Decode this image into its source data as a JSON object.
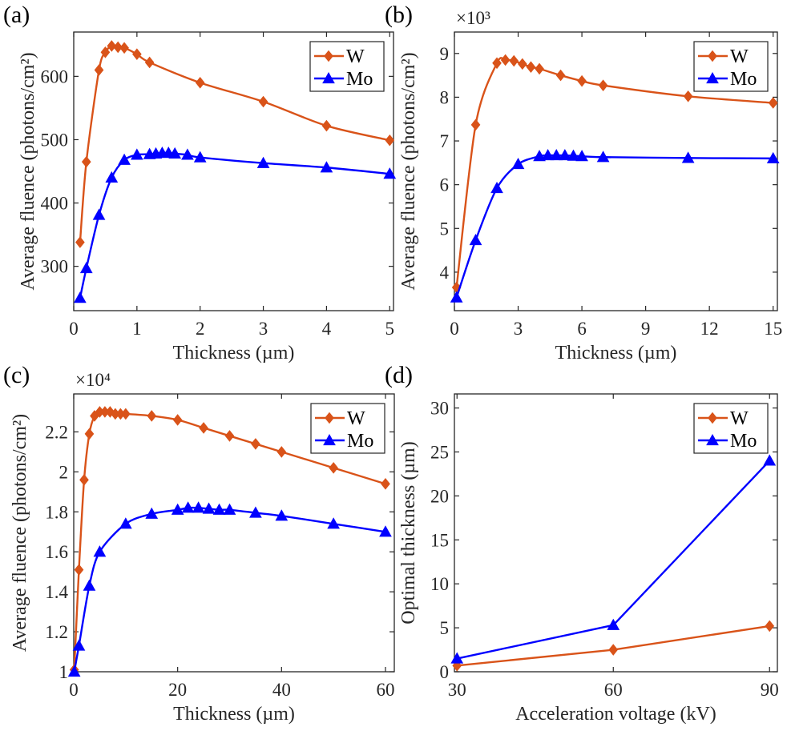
{
  "chart_data": [
    {
      "type": "line",
      "panel_label": "(a)",
      "exponent": "",
      "xlabel": "Thickness (µm)",
      "ylabel": "Average fluence (photons/cm²)",
      "xlim": [
        0,
        5.06
      ],
      "ylim": [
        230,
        670
      ],
      "xticks": [
        0,
        1,
        2,
        3,
        4,
        5
      ],
      "yticks": [
        300,
        400,
        500,
        600
      ],
      "xtick_labels": [
        "0",
        "1",
        "2",
        "3",
        "4",
        "5"
      ],
      "ytick_labels": [
        "300",
        "400",
        "500",
        "600"
      ],
      "legend": "top-right",
      "grid": false,
      "smooth": true,
      "series": [
        {
          "name": "W",
          "color": "#D95319",
          "marker": "diamond",
          "x": [
            0.1,
            0.2,
            0.4,
            0.5,
            0.6,
            0.7,
            0.8,
            1.0,
            1.2,
            2,
            3,
            4,
            5
          ],
          "y": [
            338,
            465,
            610,
            638,
            648,
            646,
            645,
            635,
            622,
            590,
            560,
            522,
            499
          ]
        },
        {
          "name": "Mo",
          "color": "#0000FF",
          "marker": "triangle",
          "x": [
            0.1,
            0.2,
            0.4,
            0.6,
            0.8,
            1.0,
            1.2,
            1.3,
            1.4,
            1.5,
            1.6,
            1.8,
            2,
            3,
            4,
            5
          ],
          "y": [
            250,
            297,
            381,
            440,
            468,
            476,
            477,
            478,
            479,
            479,
            478,
            476,
            472,
            463,
            456,
            446
          ]
        }
      ]
    },
    {
      "type": "line",
      "panel_label": "(b)",
      "exponent": "×10³",
      "xlabel": "Thickness (µm)",
      "ylabel": "Average fluence (photons/cm²)",
      "xlim": [
        0,
        15.2
      ],
      "ylim": [
        3.12,
        9.49
      ],
      "xticks": [
        0,
        3,
        6,
        9,
        12,
        15
      ],
      "yticks": [
        4,
        5,
        6,
        7,
        8,
        9
      ],
      "xtick_labels": [
        "0",
        "3",
        "6",
        "9",
        "12",
        "15"
      ],
      "ytick_labels": [
        "4",
        "5",
        "6",
        "7",
        "8",
        "9"
      ],
      "legend": "top-right",
      "grid": false,
      "smooth": true,
      "series": [
        {
          "name": "W",
          "color": "#D95319",
          "marker": "diamond",
          "x": [
            0.1,
            1,
            2,
            2.4,
            2.8,
            3.2,
            3.6,
            4,
            5,
            6,
            7,
            11,
            15
          ],
          "y": [
            3.65,
            7.37,
            8.78,
            8.85,
            8.83,
            8.76,
            8.69,
            8.65,
            8.5,
            8.37,
            8.27,
            8.02,
            7.87
          ]
        },
        {
          "name": "Mo",
          "color": "#0000FF",
          "marker": "triangle",
          "x": [
            0.1,
            1,
            2,
            3,
            4,
            4.4,
            4.8,
            5.2,
            5.6,
            6,
            7,
            11,
            15
          ],
          "y": [
            3.42,
            4.73,
            5.92,
            6.47,
            6.65,
            6.67,
            6.67,
            6.67,
            6.66,
            6.65,
            6.63,
            6.61,
            6.6
          ]
        }
      ]
    },
    {
      "type": "line",
      "panel_label": "(c)",
      "exponent": "×10⁴",
      "xlabel": "Thickness (µm)",
      "ylabel": "Average fluence (photons/cm²)",
      "xlim": [
        0,
        61.7
      ],
      "ylim": [
        1.0,
        2.39
      ],
      "xticks": [
        0,
        20,
        40,
        60
      ],
      "yticks": [
        1,
        1.2,
        1.4,
        1.6,
        1.8,
        2,
        2.2
      ],
      "xtick_labels": [
        "0",
        "20",
        "40",
        "60"
      ],
      "ytick_labels": [
        "1",
        "1.2",
        "1.4",
        "1.6",
        "1.8",
        "2",
        "2.2"
      ],
      "legend": "top-right",
      "grid": false,
      "smooth": true,
      "series": [
        {
          "name": "W",
          "color": "#D95319",
          "marker": "diamond",
          "x": [
            0.1,
            1,
            2,
            3,
            4,
            5,
            6,
            7,
            8,
            9,
            10,
            15,
            20,
            25,
            30,
            35,
            40,
            50,
            60
          ],
          "y": [
            1.01,
            1.51,
            1.96,
            2.19,
            2.28,
            2.3,
            2.3,
            2.3,
            2.29,
            2.29,
            2.29,
            2.28,
            2.26,
            2.22,
            2.18,
            2.14,
            2.1,
            2.02,
            1.94
          ]
        },
        {
          "name": "Mo",
          "color": "#0000FF",
          "marker": "triangle",
          "x": [
            0.1,
            1,
            3,
            5,
            10,
            15,
            20,
            22,
            24,
            26,
            28,
            30,
            35,
            40,
            50,
            60
          ],
          "y": [
            1.0,
            1.13,
            1.43,
            1.6,
            1.74,
            1.79,
            1.81,
            1.82,
            1.82,
            1.815,
            1.81,
            1.81,
            1.795,
            1.78,
            1.74,
            1.7
          ]
        }
      ]
    },
    {
      "type": "line",
      "panel_label": "(d)",
      "exponent": "",
      "xlabel": "Acceleration voltage (kV)",
      "ylabel": "Optimal thickness (µm)",
      "xlim": [
        29.5,
        91.5
      ],
      "ylim": [
        0,
        31.6
      ],
      "xticks": [
        30,
        60,
        90
      ],
      "yticks": [
        0,
        5,
        10,
        15,
        20,
        25,
        30
      ],
      "xtick_labels": [
        "30",
        "60",
        "90"
      ],
      "ytick_labels": [
        "0",
        "5",
        "10",
        "15",
        "20",
        "25",
        "30"
      ],
      "legend": "top-right",
      "grid": false,
      "smooth": false,
      "series": [
        {
          "name": "W",
          "color": "#D95319",
          "marker": "diamond",
          "x": [
            30,
            60,
            90
          ],
          "y": [
            0.7,
            2.5,
            5.2
          ]
        },
        {
          "name": "Mo",
          "color": "#0000FF",
          "marker": "triangle",
          "x": [
            30,
            60,
            90
          ],
          "y": [
            1.5,
            5.3,
            24
          ]
        }
      ]
    }
  ]
}
